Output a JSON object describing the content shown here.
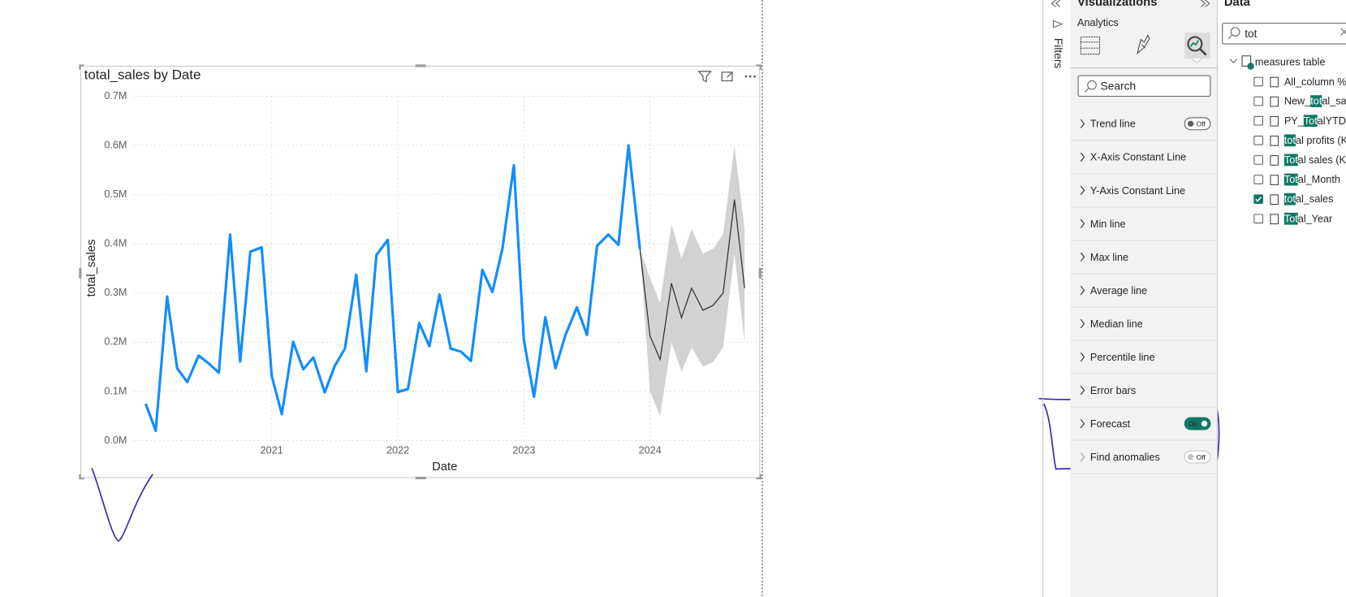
{
  "chart_data": {
    "type": "line",
    "title": "total_sales by Date",
    "x_label": "Date",
    "y_label": "total_sales",
    "x": [
      2020,
      2020.08,
      2020.17,
      2020.25,
      2020.33,
      2020.42,
      2020.5,
      2020.58,
      2020.67,
      2020.75,
      2020.83,
      2020.92,
      2021,
      2021.08,
      2021.17,
      2021.25,
      2021.33,
      2021.42,
      2021.5,
      2021.58,
      2021.67,
      2021.75,
      2021.83,
      2021.92,
      2022,
      2022.08,
      2022.17,
      2022.25,
      2022.33,
      2022.42,
      2022.5,
      2022.58,
      2022.67,
      2022.75,
      2022.83,
      2022.92,
      2023,
      2023.08,
      2023.17,
      2023.25,
      2023.33,
      2023.42,
      2023.5,
      2023.58,
      2023.67,
      2023.75,
      2023.83,
      2023.92
    ],
    "series": [
      {
        "color": "#118dff",
        "values": [
          0.075,
          0.02,
          0.293,
          0.147,
          0.119,
          0.173,
          0.157,
          0.138,
          0.419,
          0.161,
          0.384,
          0.393,
          0.131,
          0.054,
          0.201,
          0.145,
          0.169,
          0.098,
          0.152,
          0.187,
          0.337,
          0.141,
          0.377,
          0.408,
          0.099,
          0.105,
          0.239,
          0.192,
          0.297,
          0.187,
          0.181,
          0.162,
          0.347,
          0.302,
          0.391,
          0.56,
          0.204,
          0.089,
          0.251,
          0.147,
          0.215,
          0.271,
          0.215,
          0.396,
          0.419,
          0.398,
          0.6,
          0.389
        ]
      }
    ],
    "forecast": {
      "color": "#333333",
      "band_color": "#d2d2d2",
      "x": [
        2023.92,
        2024,
        2024.08,
        2024.17,
        2024.25,
        2024.33,
        2024.42,
        2024.5,
        2024.58,
        2024.67,
        2024.75
      ],
      "values": [
        0.389,
        0.213,
        0.165,
        0.32,
        0.25,
        0.31,
        0.265,
        0.275,
        0.3,
        0.49,
        0.31
      ],
      "upper": [
        0.39,
        0.33,
        0.28,
        0.44,
        0.37,
        0.43,
        0.38,
        0.39,
        0.42,
        0.6,
        0.43
      ],
      "lower": [
        0.39,
        0.1,
        0.05,
        0.2,
        0.14,
        0.19,
        0.15,
        0.16,
        0.19,
        0.38,
        0.2
      ]
    },
    "xlim": [
      2019.9,
      2024.87
    ],
    "xticks": [
      2021,
      2022,
      2023,
      2024
    ],
    "ylim": [
      0,
      0.7
    ],
    "yticks": [
      {
        "value": 0,
        "label": "0.0M"
      },
      {
        "value": 0.1,
        "label": "0.1M"
      },
      {
        "value": 0.2,
        "label": "0.2M"
      },
      {
        "value": 0.3,
        "label": "0.3M"
      },
      {
        "value": 0.4,
        "label": "0.4M"
      },
      {
        "value": 0.5,
        "label": "0.5M"
      },
      {
        "value": 0.6,
        "label": "0.6M"
      },
      {
        "value": 0.7,
        "label": "0.7M"
      }
    ],
    "grid": true
  },
  "filters_label": "Filters",
  "visualizations": {
    "title": "Visualizations",
    "tab": "Analytics",
    "search_placeholder": "Search",
    "sections": [
      {
        "label": "Trend line",
        "toggle": "Off",
        "on": false
      },
      {
        "label": "X-Axis Constant Line"
      },
      {
        "label": "Y-Axis Constant Line"
      },
      {
        "label": "Min line"
      },
      {
        "label": "Max line"
      },
      {
        "label": "Average line"
      },
      {
        "label": "Median line"
      },
      {
        "label": "Percentile line"
      },
      {
        "label": "Error bars"
      },
      {
        "label": "Forecast",
        "toggle": "On",
        "on": true
      },
      {
        "label": "Find anomalies",
        "toggle": "Off",
        "on": false,
        "disabled": true
      }
    ]
  },
  "data_pane": {
    "title": "Data",
    "search": "tot",
    "table": "measures table",
    "items": [
      {
        "label": "All_column %",
        "checked": false
      },
      {
        "label": "New_total_sale",
        "checked": false
      },
      {
        "label": "PY_TotalYTD",
        "checked": false
      },
      {
        "label": "total profits (K",
        "checked": false
      },
      {
        "label": "Total sales (K/$",
        "checked": false
      },
      {
        "label": "Total_Month",
        "checked": false
      },
      {
        "label": "total_sales",
        "checked": true
      },
      {
        "label": "Total_Year",
        "checked": false
      }
    ]
  }
}
